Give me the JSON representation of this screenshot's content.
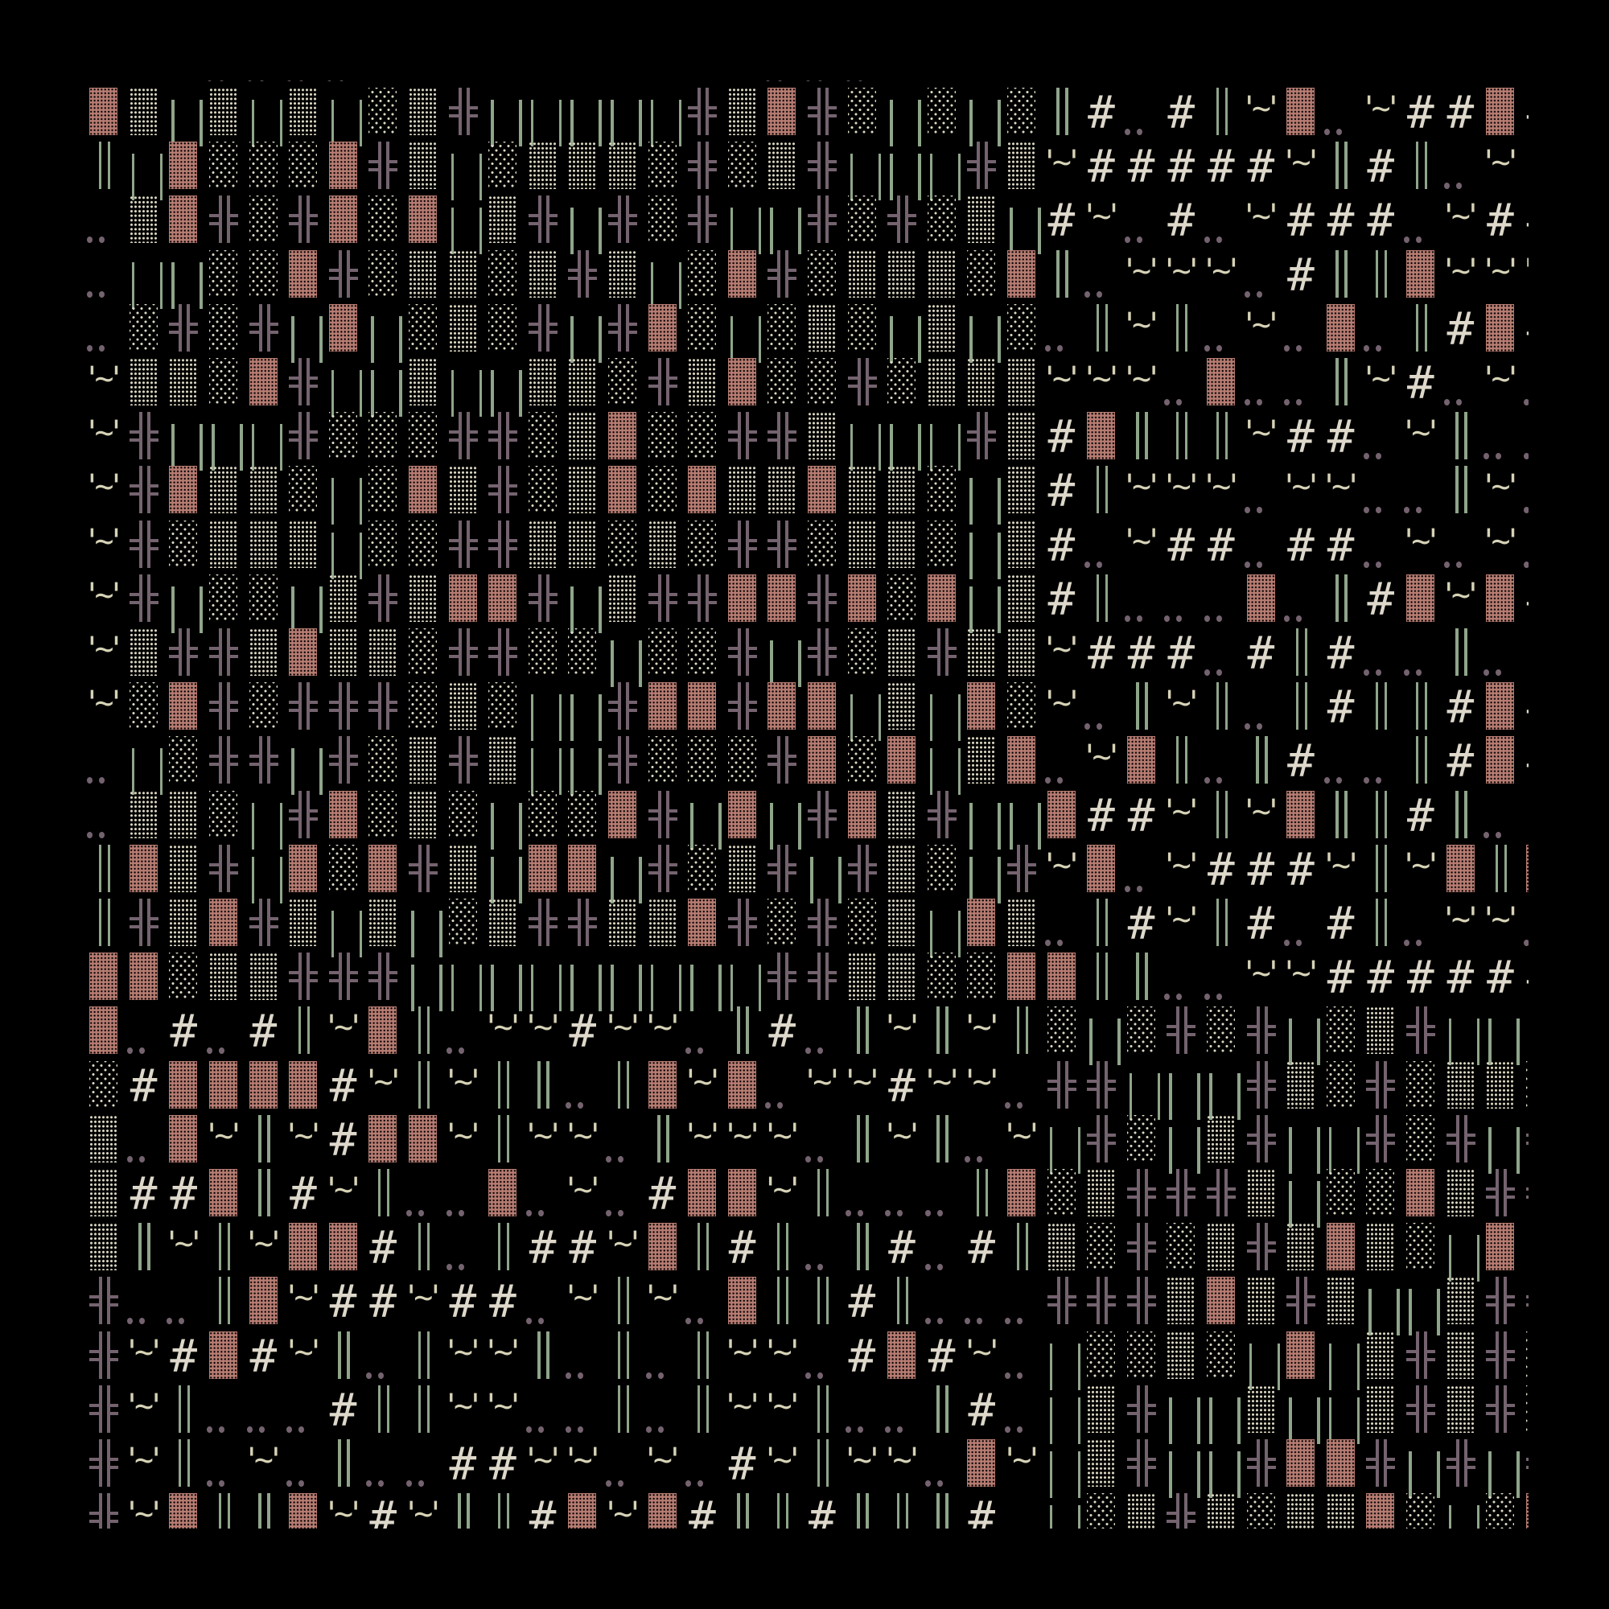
{
  "artwork": {
    "legend": {
      "B": {
        "glyph": "▓",
        "name": "dense-shade-block",
        "color": "#b77c72"
      },
      "M": {
        "glyph": "▒",
        "name": "medium-shade-block",
        "color": "#ddd8c3"
      },
      "L": {
        "glyph": "░",
        "name": "light-shade-block",
        "color": "#ddd8c3"
      },
      "W": {
        "glyph": "| |",
        "name": "wide-double-bar",
        "color": "#8fa58a"
      },
      "N": {
        "glyph": "║",
        "name": "double-vertical-bar",
        "color": "#8fa58a"
      },
      "X": {
        "glyph": "╬",
        "name": "double-cross",
        "color": "#74636f"
      },
      "H": {
        "glyph": "#",
        "name": "hash",
        "color": "#ddd8ca"
      },
      "T": {
        "glyph": "'~'",
        "name": "quote-tilde",
        "color": "#d6d2b6"
      },
      "D": {
        "glyph": "..",
        "name": "double-dot",
        "color": "#74636f"
      }
    },
    "background": "#000000",
    "rows": [
      "   DDDD          DDD                 ",
      "BMWMWMWLMXWWWWWXMBXLWLWLNHDHNTBDTHHBH",
      "NWBLLLBXMWLMMMLXLMXWWWXMTHHHHHTNHNDT ",
      "DMBXLXBLBWMXWXLXWWXLXLMWHTDHDTHHHDTHH",
      "DWWLLBXLMMLMXMWLBXLMMMLBNDTTTDHNNBTTT",
      "DLXLXWBWLMLXWXBLWLMLWMWLDNTNDTDBDNHBH",
      "TMMLBXWWMWWMMLXMBLLXLMMMTTTDBDDNTHDTD",
      "TXWWWXLLLXXLMBLLXXMWWWXMHBNNNTHHDTNDD",
      "TXBMMLWLBMXLMBLBMMBMMLWMHNTTTDTTDDNTD",
      "TXLMMMWLLXXMMLMLXXLMMLWMHDTHHDHHDTDTD",
      "TXWLLWMXMBBXWMXXBBXBLBWMHNDDDBDNHBTBH",
      "TMXXMBMMLXXLLWLLXWXLMXMMTHHHDHNHDDND ",
      "TLBXLXXXLMLWWXBBXBBWMWBLTDNTNDNHNNHBH",
      "DWLXXWXLMXMWWXLLLXBLBWMBDTBNDNHDDNHBH",
      "DMMLWXBLMLWLLBXWBWXBMXWWBHHTNTBNNHND ",
      "NBMXWBLBXMWBBWXLMXWXMLWXTBDTHHHTNTBNB",
      "NXMBXMWMWLMXXMMBXLXLMWBMDNHTNHDHNDTTD",
      "BBLMMXXXWWWWWWWWWXXMMLLBBNNDDTTHHHHHH",
      "BDHDHNTBNDTTHTTDNHDNTNTNLWLXLXWLMXWWW",
      "LHBBBBHTNTNNDNBTBDTTHTTDXXWWWXMLXLMML",
      "MDBTNTHBBTNTTDNTTTDNTNDTWXLWMXWWXLXWX",
      "MHHBNHTNDDBDTDHBBTNDDDNBLMXXXMWLLBMXX",
      "MNTNTBBHNDNHHTBNHNDNHDHNMLXLMXMBMLWBW",
      "XDDNBTHHTHHDTNTDBNNHNDDDXXXMBMXMWWMXX",
      "XTHBHTNDNTTNDNDNTTDHBHTDWLLMLWBWMXMXL",
      "XTNDDDHNNTTDDNDNTTNDDNHDWMXWWMWWMXMXL",
      "XTNDTDNDDHHTTDTDHTNTTDBTWMXWWXBBXWXWX",
      "XTBNNBTHTNNHBTBHNNHNNNH WLMXMLMMBLWLB"
    ]
  }
}
